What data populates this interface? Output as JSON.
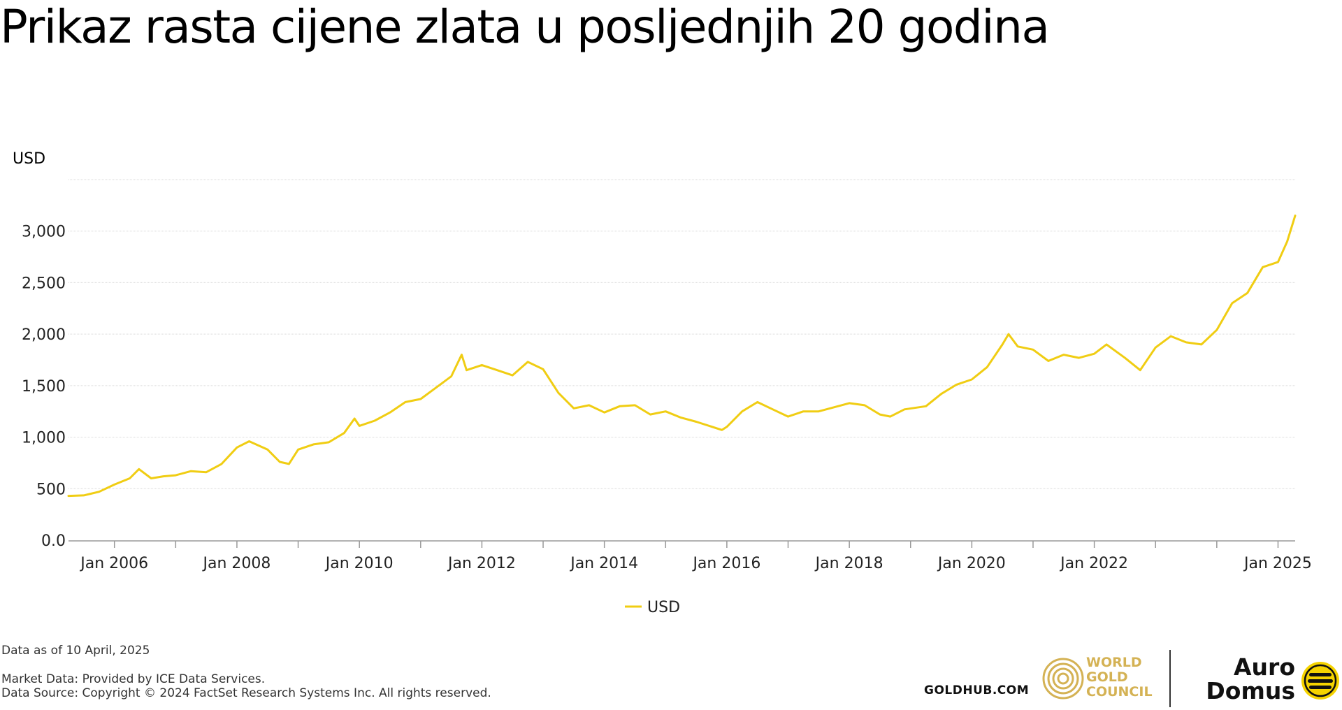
{
  "title": "Prikaz rasta cijene zlata u posljednjih 20 godina",
  "footer": {
    "data_as_of": "Data as of 10 April, 2025",
    "market_data": "Market Data: Provided by ICE Data Services.",
    "data_source": "Data Source: Copyright © 2024 FactSet Research Systems Inc. All rights reserved.",
    "goldhub": "GOLDHUB.COM",
    "wgc_line1": "WORLD",
    "wgc_line2": "GOLD",
    "wgc_line3": "COUNCIL",
    "auro_line1": "Auro",
    "auro_line2": "Domus"
  },
  "colors": {
    "series": "#f0cd13",
    "grid": "#d9d9d9",
    "axis": "#999999",
    "wgc_gold": "#d4b254",
    "auro_yellow": "#f5d300"
  },
  "chart_data": {
    "type": "line",
    "title": "Prikaz rasta cijene zlata u posljednjih 20 godina",
    "ylabel": "USD",
    "xlabel": "",
    "ylim": [
      0,
      3500
    ],
    "yticks": [
      0,
      500,
      1000,
      1500,
      2000,
      2500,
      3000
    ],
    "ytick_labels": [
      "0.0",
      "500",
      "1,000",
      "1,500",
      "2,000",
      "2,500",
      "3,000"
    ],
    "xlim": [
      2005.25,
      2025.28
    ],
    "xticks": [
      2006,
      2008,
      2010,
      2012,
      2014,
      2016,
      2018,
      2020,
      2022,
      2025
    ],
    "xtick_labels": [
      "Jan 2006",
      "Jan 2008",
      "Jan 2010",
      "Jan 2012",
      "Jan 2014",
      "Jan 2016",
      "Jan 2018",
      "Jan 2020",
      "Jan 2022",
      "Jan 2025"
    ],
    "minor_xticks": [
      2007,
      2009,
      2011,
      2013,
      2015,
      2017,
      2019,
      2021,
      2023,
      2024
    ],
    "grid": true,
    "legend": {
      "position": "bottom-center",
      "entries": [
        "USD"
      ]
    },
    "series": [
      {
        "name": "USD",
        "x": [
          2005.25,
          2005.5,
          2005.75,
          2006.0,
          2006.25,
          2006.4,
          2006.6,
          2006.8,
          2007.0,
          2007.25,
          2007.5,
          2007.75,
          2008.0,
          2008.2,
          2008.5,
          2008.7,
          2008.85,
          2009.0,
          2009.25,
          2009.5,
          2009.75,
          2009.92,
          2010.0,
          2010.25,
          2010.5,
          2010.75,
          2011.0,
          2011.25,
          2011.5,
          2011.67,
          2011.75,
          2012.0,
          2012.25,
          2012.5,
          2012.75,
          2013.0,
          2013.25,
          2013.5,
          2013.75,
          2014.0,
          2014.25,
          2014.5,
          2014.75,
          2015.0,
          2015.25,
          2015.5,
          2015.92,
          2016.0,
          2016.25,
          2016.5,
          2016.75,
          2017.0,
          2017.25,
          2017.5,
          2017.75,
          2018.0,
          2018.25,
          2018.5,
          2018.67,
          2018.9,
          2019.25,
          2019.5,
          2019.75,
          2020.0,
          2020.25,
          2020.5,
          2020.6,
          2020.75,
          2021.0,
          2021.25,
          2021.5,
          2021.75,
          2022.0,
          2022.2,
          2022.5,
          2022.75,
          2023.0,
          2023.25,
          2023.5,
          2023.75,
          2024.0,
          2024.25,
          2024.5,
          2024.75,
          2025.0,
          2025.15,
          2025.28
        ],
        "values": [
          430,
          435,
          470,
          540,
          600,
          690,
          600,
          620,
          630,
          670,
          660,
          740,
          900,
          960,
          880,
          760,
          740,
          880,
          930,
          950,
          1040,
          1180,
          1110,
          1160,
          1240,
          1340,
          1370,
          1480,
          1590,
          1800,
          1650,
          1700,
          1650,
          1600,
          1730,
          1660,
          1430,
          1280,
          1310,
          1240,
          1300,
          1310,
          1220,
          1250,
          1190,
          1150,
          1070,
          1100,
          1250,
          1340,
          1270,
          1200,
          1250,
          1250,
          1290,
          1330,
          1310,
          1220,
          1200,
          1270,
          1300,
          1420,
          1510,
          1560,
          1680,
          1900,
          2000,
          1880,
          1850,
          1740,
          1800,
          1770,
          1810,
          1900,
          1770,
          1650,
          1870,
          1980,
          1920,
          1900,
          2040,
          2300,
          2400,
          2650,
          2700,
          2900,
          3150
        ]
      }
    ]
  }
}
